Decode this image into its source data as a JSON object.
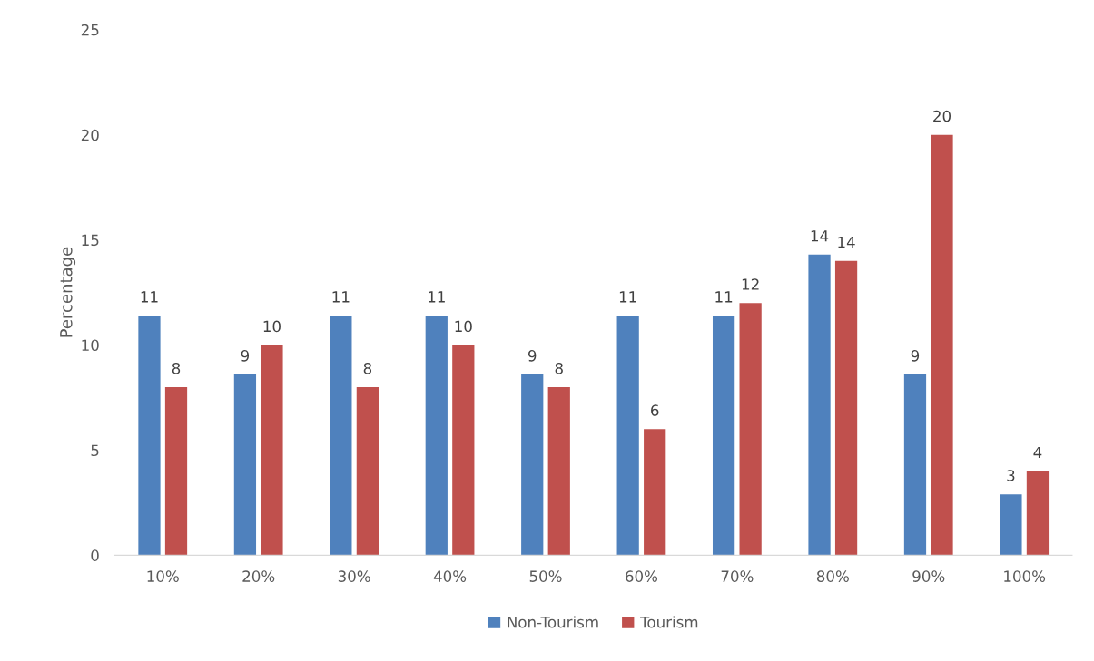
{
  "chart_data": {
    "type": "bar",
    "ylabel": "Percentage",
    "categories": [
      "10%",
      "20%",
      "30%",
      "40%",
      "50%",
      "60%",
      "70%",
      "80%",
      "90%",
      "100%"
    ],
    "series": [
      {
        "name": "Non-Tourism",
        "color": "#4f81bd",
        "values": [
          11.4,
          8.6,
          11.4,
          11.4,
          8.6,
          11.4,
          11.4,
          14.3,
          8.6,
          2.9
        ],
        "value_labels": [
          "11",
          "9",
          "11",
          "11",
          "9",
          "11",
          "11",
          "14",
          "9",
          "3"
        ]
      },
      {
        "name": "Tourism",
        "color": "#c0504d",
        "values": [
          8,
          10,
          8,
          10,
          8,
          6,
          12,
          14,
          20,
          4
        ],
        "value_labels": [
          "8",
          "10",
          "8",
          "10",
          "8",
          "6",
          "12",
          "14",
          "20",
          "4"
        ]
      }
    ],
    "ylim": [
      0,
      25
    ],
    "yticks": [
      0,
      5,
      10,
      15,
      20,
      25
    ],
    "grid": false,
    "legend": "bottom"
  }
}
